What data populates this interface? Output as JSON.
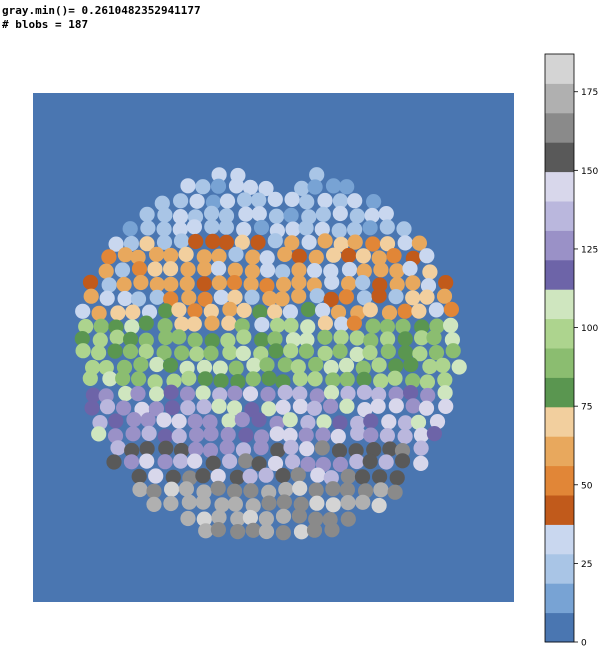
{
  "console": {
    "line1": "gray.min()= 0.2610482352941177",
    "line2": "# blobs = 187"
  },
  "colors": {
    "background": "#4a76b1",
    "palette": [
      "#4a76b1",
      "#78a3d4",
      "#a9c5e6",
      "#c9d7ef",
      "#c15a1b",
      "#e18637",
      "#e8a85d",
      "#f2cf9e",
      "#5a9650",
      "#8bbd70",
      "#add48e",
      "#cfe6bf",
      "#6d64a8",
      "#9a91c7",
      "#bab7dd",
      "#d8d7eb",
      "#595959",
      "#8a8a8a",
      "#b0b0b0",
      "#d4d4d4"
    ]
  },
  "colorbar": {
    "min": 0,
    "max": 187,
    "ticks": [
      "0",
      "25",
      "50",
      "75",
      "100",
      "125",
      "150",
      "175"
    ],
    "tick_values": [
      0,
      25,
      50,
      75,
      100,
      125,
      150,
      175
    ]
  }
}
